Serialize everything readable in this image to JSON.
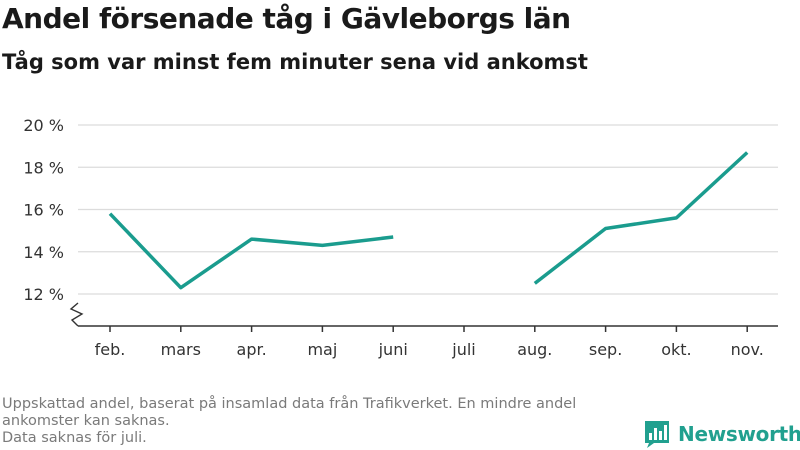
{
  "title": "Andel försenade tåg i Gävleborgs län",
  "subtitle": "Tåg som var minst fem minuter sena vid ankomst",
  "footer": {
    "line1": "Uppskattad andel, baserat på insamlad data från Trafikverket. En mindre andel ankomster kan saknas.",
    "line2": "Data saknas för juli."
  },
  "brand": {
    "name": "Newsworthy",
    "icon": "newsworthy-logo-icon"
  },
  "colors": {
    "line": "#1a9c8e",
    "grid": "#dcdcdc",
    "axis": "#333333",
    "brand": "#21a08f"
  },
  "chart_data": {
    "type": "line",
    "categories": [
      "feb.",
      "mars",
      "apr.",
      "maj",
      "juni",
      "juli",
      "aug.",
      "sep.",
      "okt.",
      "nov."
    ],
    "series": [
      {
        "values": [
          15.8,
          12.3,
          14.6,
          14.3,
          14.7,
          null,
          12.5,
          15.1,
          15.6,
          18.7
        ]
      }
    ],
    "y_ticks": [
      12,
      14,
      16,
      18,
      20
    ],
    "y_tick_labels": [
      "12 %",
      "14 %",
      "16 %",
      "18 %",
      "20 %"
    ],
    "ylim": [
      10.5,
      20
    ],
    "y_axis_break": true,
    "grid": true
  }
}
